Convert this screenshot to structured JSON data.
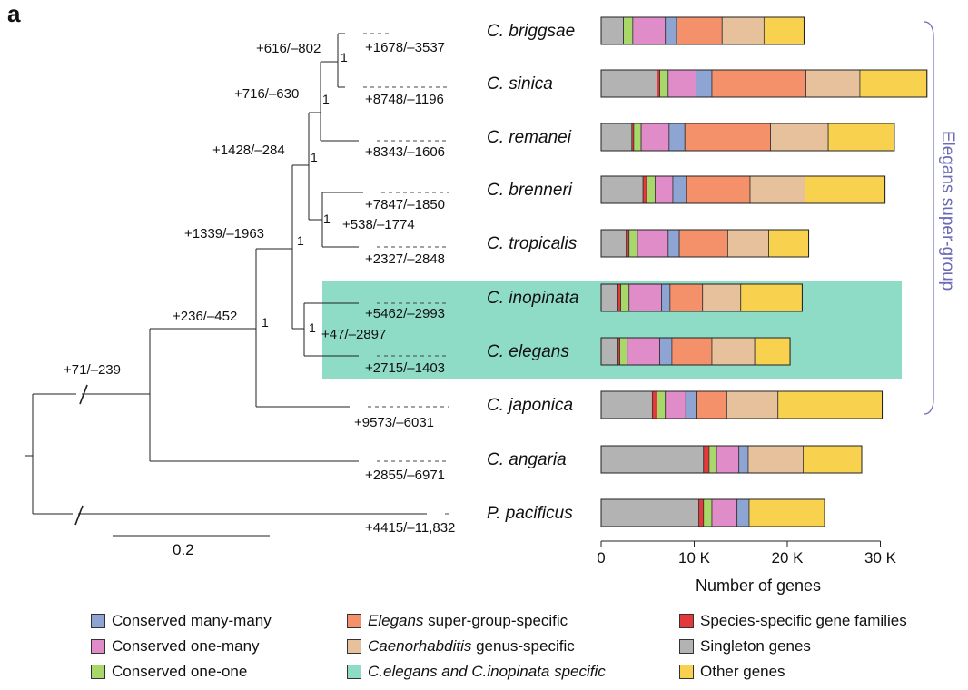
{
  "panel_label": "a",
  "colors": {
    "singleton": "#b3b3b3",
    "species_specific": "#e5383b",
    "one_one": "#a8d86a",
    "one_many": "#e08cc8",
    "many_many": "#8ea4d2",
    "super_group": "#f5916a",
    "genus": "#e6c19c",
    "other": "#f8d24e",
    "highlight": "#8fdcc6",
    "bracket": "#6a6ab8"
  },
  "tree": {
    "scale_label": "0.2",
    "edge_labels": [
      {
        "id": "briggsae-tip",
        "text": "+1678/–3537"
      },
      {
        "id": "sinica-tip",
        "text": "+8748/–1196"
      },
      {
        "id": "remanei-tip",
        "text": "+8343/–1606"
      },
      {
        "id": "brenneri-tip",
        "text": "+7847/–1850"
      },
      {
        "id": "tropicalis-tip",
        "text": "+2327/–2848"
      },
      {
        "id": "inopinata-tip",
        "text": "+5462/–2993"
      },
      {
        "id": "elegans-tip",
        "text": "+2715/–1403"
      },
      {
        "id": "japonica-tip",
        "text": "+9573/–6031"
      },
      {
        "id": "angaria-tip",
        "text": "+2855/–6971"
      },
      {
        "id": "pacificus-tip",
        "text": "+4415/–11,832"
      },
      {
        "id": "node-bs",
        "text": "+616/–802"
      },
      {
        "id": "node-bsr",
        "text": "+716/–630"
      },
      {
        "id": "node-bsrbt",
        "text": "+1428/–284"
      },
      {
        "id": "node-bt",
        "text": "+538/–1774"
      },
      {
        "id": "node-elegans-grp",
        "text": "+1339/–1963"
      },
      {
        "id": "node-ie",
        "text": "+47/–2897"
      },
      {
        "id": "node-super",
        "text": "+236/–452"
      },
      {
        "id": "node-root",
        "text": "+71/–239"
      }
    ],
    "support_value": "1"
  },
  "chart_data": {
    "type": "bar",
    "orientation": "horizontal",
    "stacked": true,
    "xlabel": "Number of genes",
    "xlim": [
      0,
      35000
    ],
    "xticks": [
      0,
      10000,
      20000,
      30000
    ],
    "xtick_labels": [
      "0",
      "10 K",
      "20 K",
      "30 K"
    ],
    "bracket_label": "Elegans super-group",
    "categories": [
      "C. briggsae",
      "C. sinica",
      "C. remanei",
      "C. brenneri",
      "C. tropicalis",
      "C. inopinata",
      "C. elegans",
      "C. japonica",
      "C. angaria",
      "P. pacificus"
    ],
    "series": [
      {
        "name": "Singleton genes",
        "key": "singleton",
        "values": [
          2400,
          6000,
          3300,
          4500,
          2700,
          1800,
          1800,
          5500,
          11000,
          10500
        ]
      },
      {
        "name": "Species-specific gene families",
        "key": "species_specific",
        "values": [
          0,
          300,
          200,
          400,
          300,
          300,
          200,
          500,
          600,
          500
        ]
      },
      {
        "name": "Conserved one-one",
        "key": "one_one",
        "values": [
          1000,
          900,
          800,
          900,
          900,
          900,
          800,
          900,
          800,
          900
        ]
      },
      {
        "name": "Conserved one-many",
        "key": "one_many",
        "values": [
          3500,
          3000,
          3000,
          1900,
          3300,
          3500,
          3500,
          2200,
          2400,
          2700
        ]
      },
      {
        "name": "Conserved many-many",
        "key": "many_many",
        "values": [
          1200,
          1700,
          1700,
          1500,
          1200,
          900,
          1300,
          1200,
          1000,
          1300
        ]
      },
      {
        "name": "Elegans super-group-specific",
        "key": "super_group",
        "values": [
          4900,
          10100,
          9200,
          6800,
          5200,
          3500,
          4300,
          3200,
          0,
          0
        ]
      },
      {
        "name": "Caenorhabditis genus-specific",
        "key": "genus",
        "values": [
          4500,
          5800,
          6200,
          5900,
          4400,
          4100,
          4600,
          5500,
          5900,
          0
        ]
      },
      {
        "name": "Other genes",
        "key": "other",
        "values": [
          4300,
          7200,
          7100,
          8600,
          4300,
          6600,
          3800,
          11200,
          6300,
          8100
        ]
      }
    ]
  },
  "legend": [
    {
      "key": "many_many",
      "label": "Conserved many-many",
      "italic_part": ""
    },
    {
      "key": "one_many",
      "label": "Conserved one-many",
      "italic_part": ""
    },
    {
      "key": "one_one",
      "label": "Conserved one-one",
      "italic_part": ""
    },
    {
      "key": "super_group",
      "label": " super-group-specific",
      "italic_part": "Elegans"
    },
    {
      "key": "genus",
      "label": " genus-specific",
      "italic_part": "Caenorhabditis"
    },
    {
      "key": "highlight",
      "label": "",
      "italic_part": "C.elegans and C.inopinata specific"
    },
    {
      "key": "species_specific",
      "label": "Species-specific gene families",
      "italic_part": ""
    },
    {
      "key": "singleton",
      "label": "Singleton genes",
      "italic_part": ""
    },
    {
      "key": "other",
      "label": "Other genes",
      "italic_part": ""
    }
  ]
}
